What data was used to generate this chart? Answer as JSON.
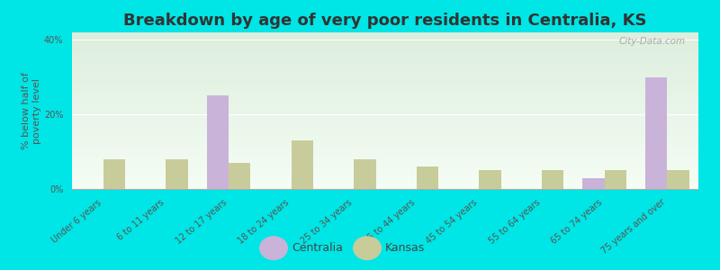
{
  "title": "Breakdown by age of very poor residents in Centralia, KS",
  "ylabel": "% below half of\npoverty level",
  "categories": [
    "Under 6 years",
    "6 to 11 years",
    "12 to 17 years",
    "18 to 24 years",
    "25 to 34 years",
    "35 to 44 years",
    "45 to 54 years",
    "55 to 64 years",
    "65 to 74 years",
    "75 years and over"
  ],
  "centralia": [
    0,
    0,
    25,
    0,
    0,
    0,
    0,
    0,
    3,
    30
  ],
  "kansas": [
    8,
    8,
    7,
    13,
    8,
    6,
    5,
    5,
    5,
    5
  ],
  "centralia_color": "#c9b3d9",
  "kansas_color": "#c8cc9a",
  "background_outer": "#00e5e5",
  "background_plot_top": "#ddeedd",
  "background_plot_bottom": "#f5fdf5",
  "ylim": [
    0,
    42
  ],
  "yticks": [
    0,
    20,
    40
  ],
  "ytick_labels": [
    "0%",
    "20%",
    "40%"
  ],
  "bar_width": 0.35,
  "title_fontsize": 13,
  "axis_label_fontsize": 8,
  "tick_label_fontsize": 7,
  "legend_fontsize": 9,
  "watermark": "City-Data.com",
  "legend_labels": [
    "Centralia",
    "Kansas"
  ]
}
